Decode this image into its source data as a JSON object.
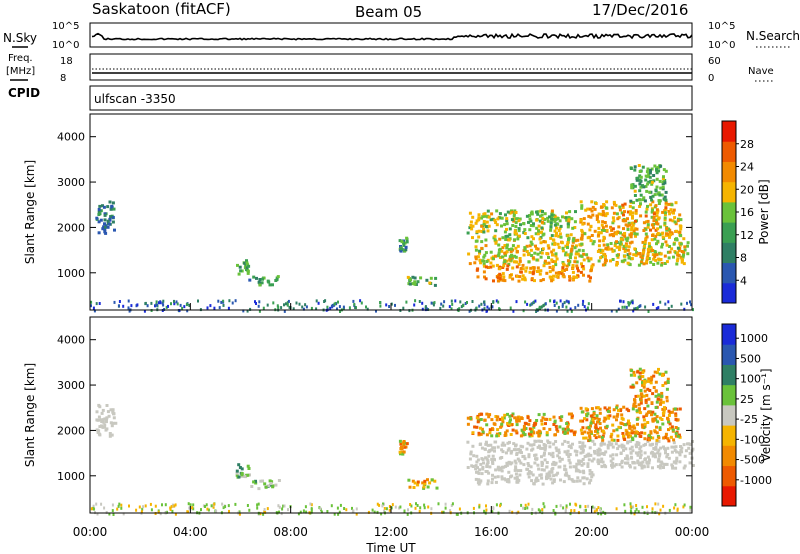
{
  "header": {
    "station": "Saskatoon (fitACF)",
    "beam": "Beam 05",
    "date": "17/Dec/2016"
  },
  "strips": {
    "nsky_label": "N.Sky",
    "nsky_ticks": [
      "10^5",
      "10^0"
    ],
    "nsearch_label": "N.Search",
    "freq_label_1": "Freq.",
    "freq_label_2": "[MHz]",
    "freq_ticks": [
      "18",
      "8"
    ],
    "nave_ticks": [
      "60",
      "0"
    ],
    "nave_label": "Nave",
    "cpid_label": "CPID",
    "cpid_value": "ulfscan -3350"
  },
  "colors": {
    "power_scale": [
      "#1a2bd8",
      "#2a57b0",
      "#2f7f64",
      "#3a9f52",
      "#6ac23a",
      "#f5b400",
      "#f28a00",
      "#ee5a00",
      "#e81800"
    ],
    "velocity_scale": [
      "#1a2bd8",
      "#2a57b0",
      "#2f7f64",
      "#6ac23a",
      "#c8c8c0",
      "#f5b400",
      "#f28a00",
      "#ee5a00",
      "#e81800"
    ],
    "ground_scatter": "#c8c8c0"
  },
  "chart_data": [
    {
      "type": "heatmap",
      "name": "power-panel",
      "ylabel": "Slant Range [km]",
      "ylim": [
        180,
        4500
      ],
      "yticks": [
        1000,
        2000,
        3000,
        4000
      ],
      "xlim": [
        0,
        24
      ],
      "xticks": [
        "00:00",
        "04:00",
        "08:00",
        "12:00",
        "16:00",
        "20:00",
        "00:00"
      ],
      "colorbar": {
        "label": "Power [dB]",
        "ticks": [
          "28",
          "24",
          "20",
          "16",
          "12",
          "8",
          "4"
        ],
        "range": [
          0,
          30
        ]
      },
      "scatter_regions": [
        {
          "t0": 0.2,
          "t1": 1.0,
          "r0": 1900,
          "r1": 2600,
          "level": 6
        },
        {
          "t0": 5.8,
          "t1": 6.3,
          "r0": 1000,
          "r1": 1300,
          "level": 12
        },
        {
          "t0": 6.3,
          "t1": 7.5,
          "r0": 750,
          "r1": 950,
          "level": 10
        },
        {
          "t0": 12.3,
          "t1": 12.6,
          "r0": 1500,
          "r1": 1800,
          "level": 10
        },
        {
          "t0": 12.6,
          "t1": 13.8,
          "r0": 750,
          "r1": 950,
          "level": 12
        },
        {
          "t0": 15.0,
          "t1": 19.3,
          "r0": 1800,
          "r1": 2400,
          "level": 16
        },
        {
          "t0": 15.0,
          "t1": 23.8,
          "r0": 1200,
          "r1": 1800,
          "level": 18
        },
        {
          "t0": 15.3,
          "t1": 20.0,
          "r0": 850,
          "r1": 1200,
          "level": 22
        },
        {
          "t0": 19.5,
          "t1": 23.5,
          "r0": 1800,
          "r1": 2600,
          "level": 20
        },
        {
          "t0": 21.5,
          "t1": 23.0,
          "r0": 2600,
          "r1": 3400,
          "level": 12
        }
      ],
      "near_range_band": {
        "r0": 180,
        "r1": 420,
        "level": 8
      }
    },
    {
      "type": "heatmap",
      "name": "velocity-panel",
      "ylabel": "Slant Range [km]",
      "ylim": [
        180,
        4500
      ],
      "yticks": [
        1000,
        2000,
        3000,
        4000
      ],
      "xlim": [
        0,
        24
      ],
      "xticks": [
        "00:00",
        "04:00",
        "08:00",
        "12:00",
        "16:00",
        "20:00",
        "00:00"
      ],
      "xlabel": "Time UT",
      "colorbar": {
        "label": "Velocity [m s⁻¹]",
        "ticks": [
          "1000",
          "500",
          "100",
          "25",
          "-25",
          "-100",
          "-500",
          "-1000"
        ]
      },
      "scatter_regions": [
        {
          "t0": 0.2,
          "t1": 1.0,
          "r0": 1900,
          "r1": 2600,
          "kind": "ground"
        },
        {
          "t0": 5.8,
          "t1": 6.3,
          "r0": 1000,
          "r1": 1300,
          "kind": "pos"
        },
        {
          "t0": 6.3,
          "t1": 7.5,
          "r0": 750,
          "r1": 950,
          "kind": "pos"
        },
        {
          "t0": 12.3,
          "t1": 12.6,
          "r0": 1500,
          "r1": 1800,
          "kind": "neg"
        },
        {
          "t0": 12.6,
          "t1": 13.8,
          "r0": 750,
          "r1": 950,
          "kind": "neg"
        },
        {
          "t0": 15.0,
          "t1": 19.3,
          "r0": 1900,
          "r1": 2400,
          "kind": "neg"
        },
        {
          "t0": 15.0,
          "t1": 24.0,
          "r0": 1200,
          "r1": 1800,
          "kind": "ground"
        },
        {
          "t0": 15.3,
          "t1": 20.0,
          "r0": 850,
          "r1": 1200,
          "kind": "ground"
        },
        {
          "t0": 19.5,
          "t1": 23.5,
          "r0": 1800,
          "r1": 2600,
          "kind": "neg"
        },
        {
          "t0": 21.5,
          "t1": 23.0,
          "r0": 2600,
          "r1": 3400,
          "kind": "neg"
        }
      ],
      "near_range_band": {
        "r0": 180,
        "r1": 420,
        "kind": "pos"
      }
    }
  ]
}
